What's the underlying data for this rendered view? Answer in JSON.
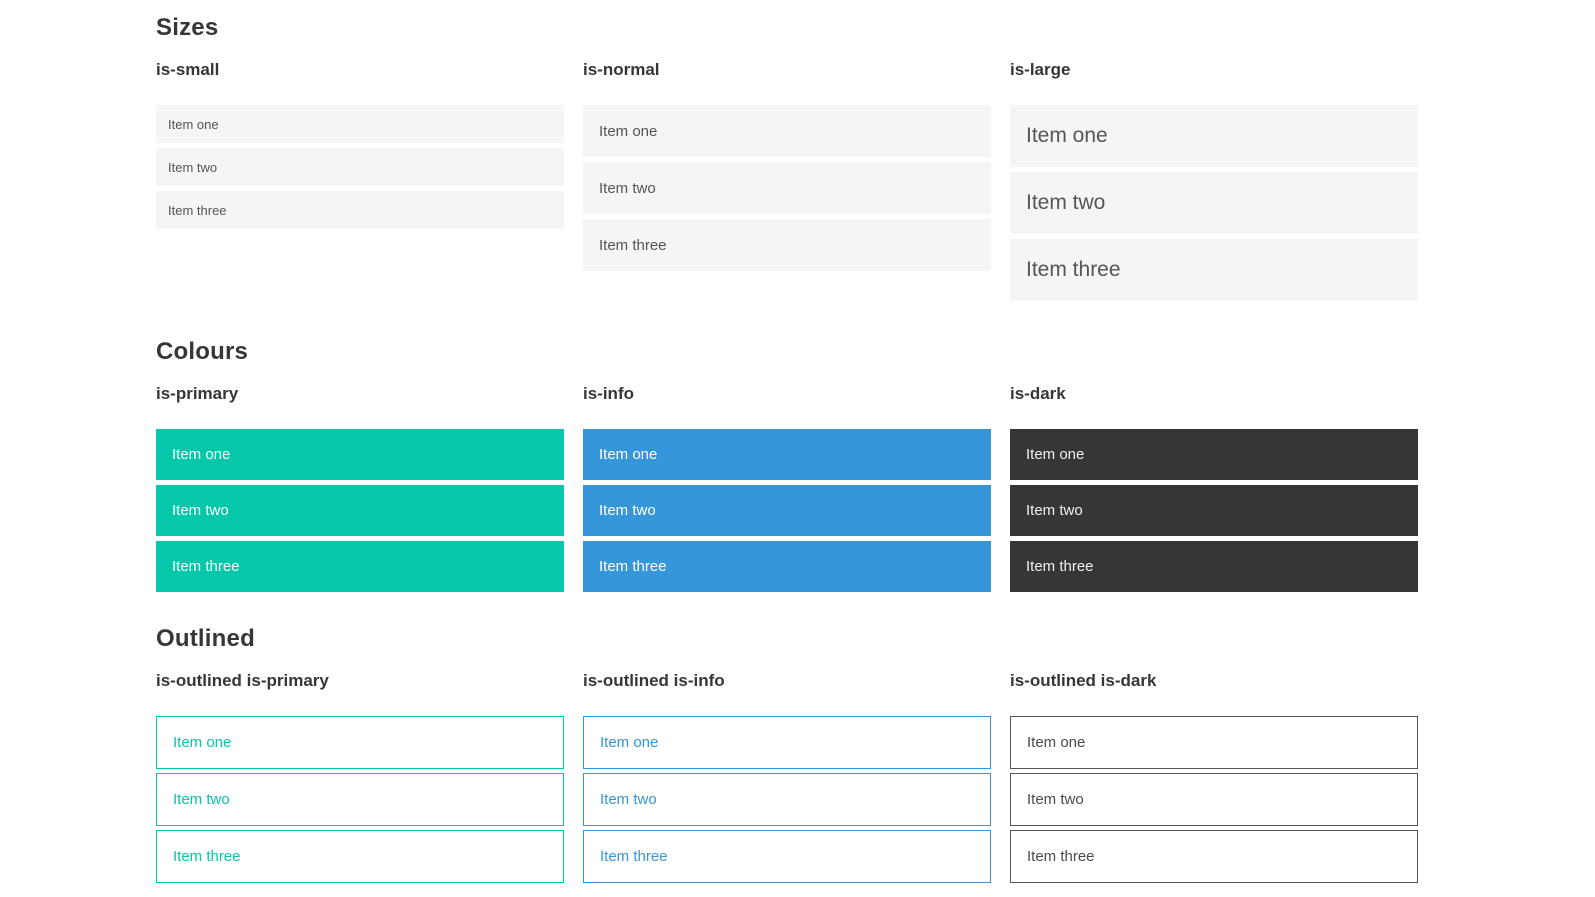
{
  "sections": [
    {
      "title": "Sizes",
      "demos": [
        {
          "label": "is-small",
          "items": [
            "Item one",
            "Item two",
            "Item three"
          ]
        },
        {
          "label": "is-normal",
          "items": [
            "Item one",
            "Item two",
            "Item three"
          ]
        },
        {
          "label": "is-large",
          "items": [
            "Item one",
            "Item two",
            "Item three"
          ]
        }
      ]
    },
    {
      "title": "Colours",
      "demos": [
        {
          "label": "is-primary",
          "items": [
            "Item one",
            "Item two",
            "Item three"
          ]
        },
        {
          "label": "is-info",
          "items": [
            "Item one",
            "Item two",
            "Item three"
          ]
        },
        {
          "label": "is-dark",
          "items": [
            "Item one",
            "Item two",
            "Item three"
          ]
        }
      ]
    },
    {
      "title": "Outlined",
      "demos": [
        {
          "label": "is-outlined is-primary",
          "items": [
            "Item one",
            "Item two",
            "Item three"
          ]
        },
        {
          "label": "is-outlined is-info",
          "items": [
            "Item one",
            "Item two",
            "Item three"
          ]
        },
        {
          "label": "is-outlined is-dark",
          "items": [
            "Item one",
            "Item two",
            "Item three"
          ]
        }
      ]
    }
  ],
  "colors": {
    "primary": "#06c7a9",
    "info": "#3596da",
    "dark": "#363636",
    "item_background": "#f5f5f5",
    "item_text": "#555555",
    "heading_text": "#363636",
    "colored_item_text": "#ffffff",
    "dark_item_text": "#f0f0f0",
    "outlined_dark_border": "#555555",
    "outlined_dark_text": "#4a4a4a"
  }
}
